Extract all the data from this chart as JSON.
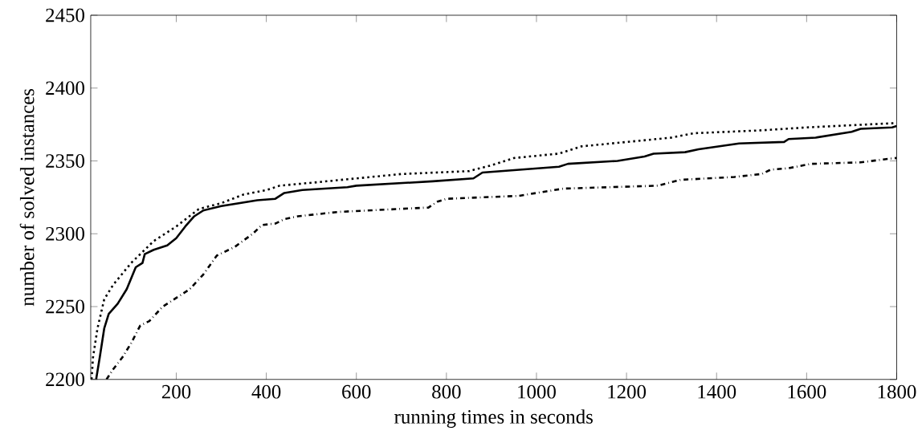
{
  "chart_data": {
    "type": "line",
    "xlabel": "running times in seconds",
    "ylabel": "number of solved instances",
    "xlim": [
      10,
      1800
    ],
    "ylim": [
      2200,
      2450
    ],
    "xticks": [
      200,
      400,
      600,
      800,
      1000,
      1200,
      1400,
      1600,
      1800
    ],
    "yticks": [
      2200,
      2250,
      2300,
      2350,
      2400,
      2450
    ],
    "grid": false,
    "marker": "none",
    "series": [
      {
        "color": "#000000",
        "line_style": "dotted",
        "x": [
          12,
          15,
          25,
          40,
          60,
          100,
          150,
          200,
          250,
          300,
          350,
          400,
          430,
          500,
          600,
          700,
          850,
          900,
          950,
          1050,
          1100,
          1200,
          1300,
          1350,
          1500,
          1600,
          1800
        ],
        "values": [
          2200,
          2215,
          2235,
          2255,
          2265,
          2280,
          2295,
          2305,
          2317,
          2321,
          2327,
          2330,
          2333,
          2335,
          2338,
          2341,
          2343,
          2347,
          2352,
          2355,
          2360,
          2363,
          2366,
          2369,
          2371,
          2373,
          2376
        ]
      },
      {
        "color": "#000000",
        "line_style": "solid",
        "x": [
          22,
          30,
          40,
          50,
          70,
          90,
          110,
          125,
          130,
          150,
          180,
          200,
          220,
          240,
          260,
          300,
          380,
          420,
          440,
          480,
          580,
          600,
          770,
          860,
          880,
          1050,
          1070,
          1180,
          1240,
          1260,
          1330,
          1360,
          1450,
          1550,
          1560,
          1620,
          1700,
          1720,
          1790,
          1800
        ],
        "values": [
          2200,
          2215,
          2235,
          2245,
          2252,
          2262,
          2277,
          2280,
          2286,
          2289,
          2292,
          2297,
          2305,
          2312,
          2316,
          2319,
          2323,
          2324,
          2328,
          2330,
          2332,
          2333,
          2336,
          2338,
          2342,
          2346,
          2348,
          2350,
          2353,
          2355,
          2356,
          2358,
          2362,
          2363,
          2365,
          2366,
          2370,
          2372,
          2373,
          2374
        ]
      },
      {
        "color": "#000000",
        "line_style": "dashdot",
        "x": [
          45,
          60,
          80,
          100,
          120,
          140,
          170,
          200,
          230,
          260,
          290,
          330,
          370,
          390,
          420,
          440,
          470,
          560,
          760,
          780,
          800,
          960,
          1000,
          1060,
          1270,
          1320,
          1440,
          1500,
          1520,
          1560,
          1610,
          1720,
          1770,
          1800
        ],
        "values": [
          2200,
          2207,
          2215,
          2225,
          2237,
          2240,
          2250,
          2256,
          2262,
          2272,
          2285,
          2291,
          2300,
          2306,
          2307,
          2310,
          2312,
          2315,
          2318,
          2322,
          2324,
          2326,
          2328,
          2331,
          2333,
          2337,
          2339,
          2341,
          2344,
          2345,
          2348,
          2349,
          2351,
          2352
        ]
      }
    ]
  }
}
